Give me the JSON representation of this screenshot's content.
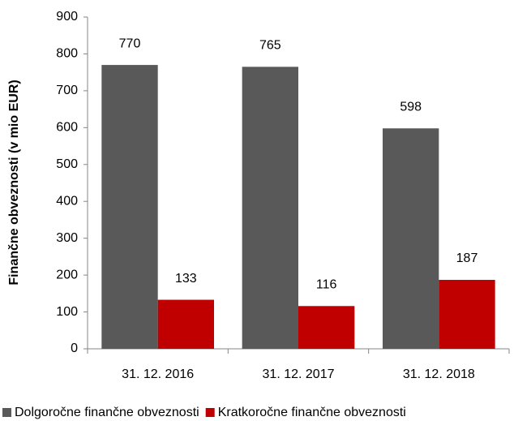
{
  "chart_data": {
    "type": "bar",
    "y_label": "Finančne obveznosti (v mio EUR)",
    "categories": [
      "31. 12. 2016",
      "31. 12. 2017",
      "31. 12. 2018"
    ],
    "series": [
      {
        "name": "Dolgoročne finančne obveznosti",
        "color": "#595959",
        "values": [
          770,
          765,
          598
        ]
      },
      {
        "name": "Kratkoročne finančne obveznosti",
        "color": "#c00000",
        "values": [
          133,
          116,
          187
        ]
      }
    ],
    "ylim": [
      0,
      900
    ],
    "yticks": [
      0,
      100,
      200,
      300,
      400,
      500,
      600,
      700,
      800,
      900
    ],
    "legend": "bottom"
  }
}
